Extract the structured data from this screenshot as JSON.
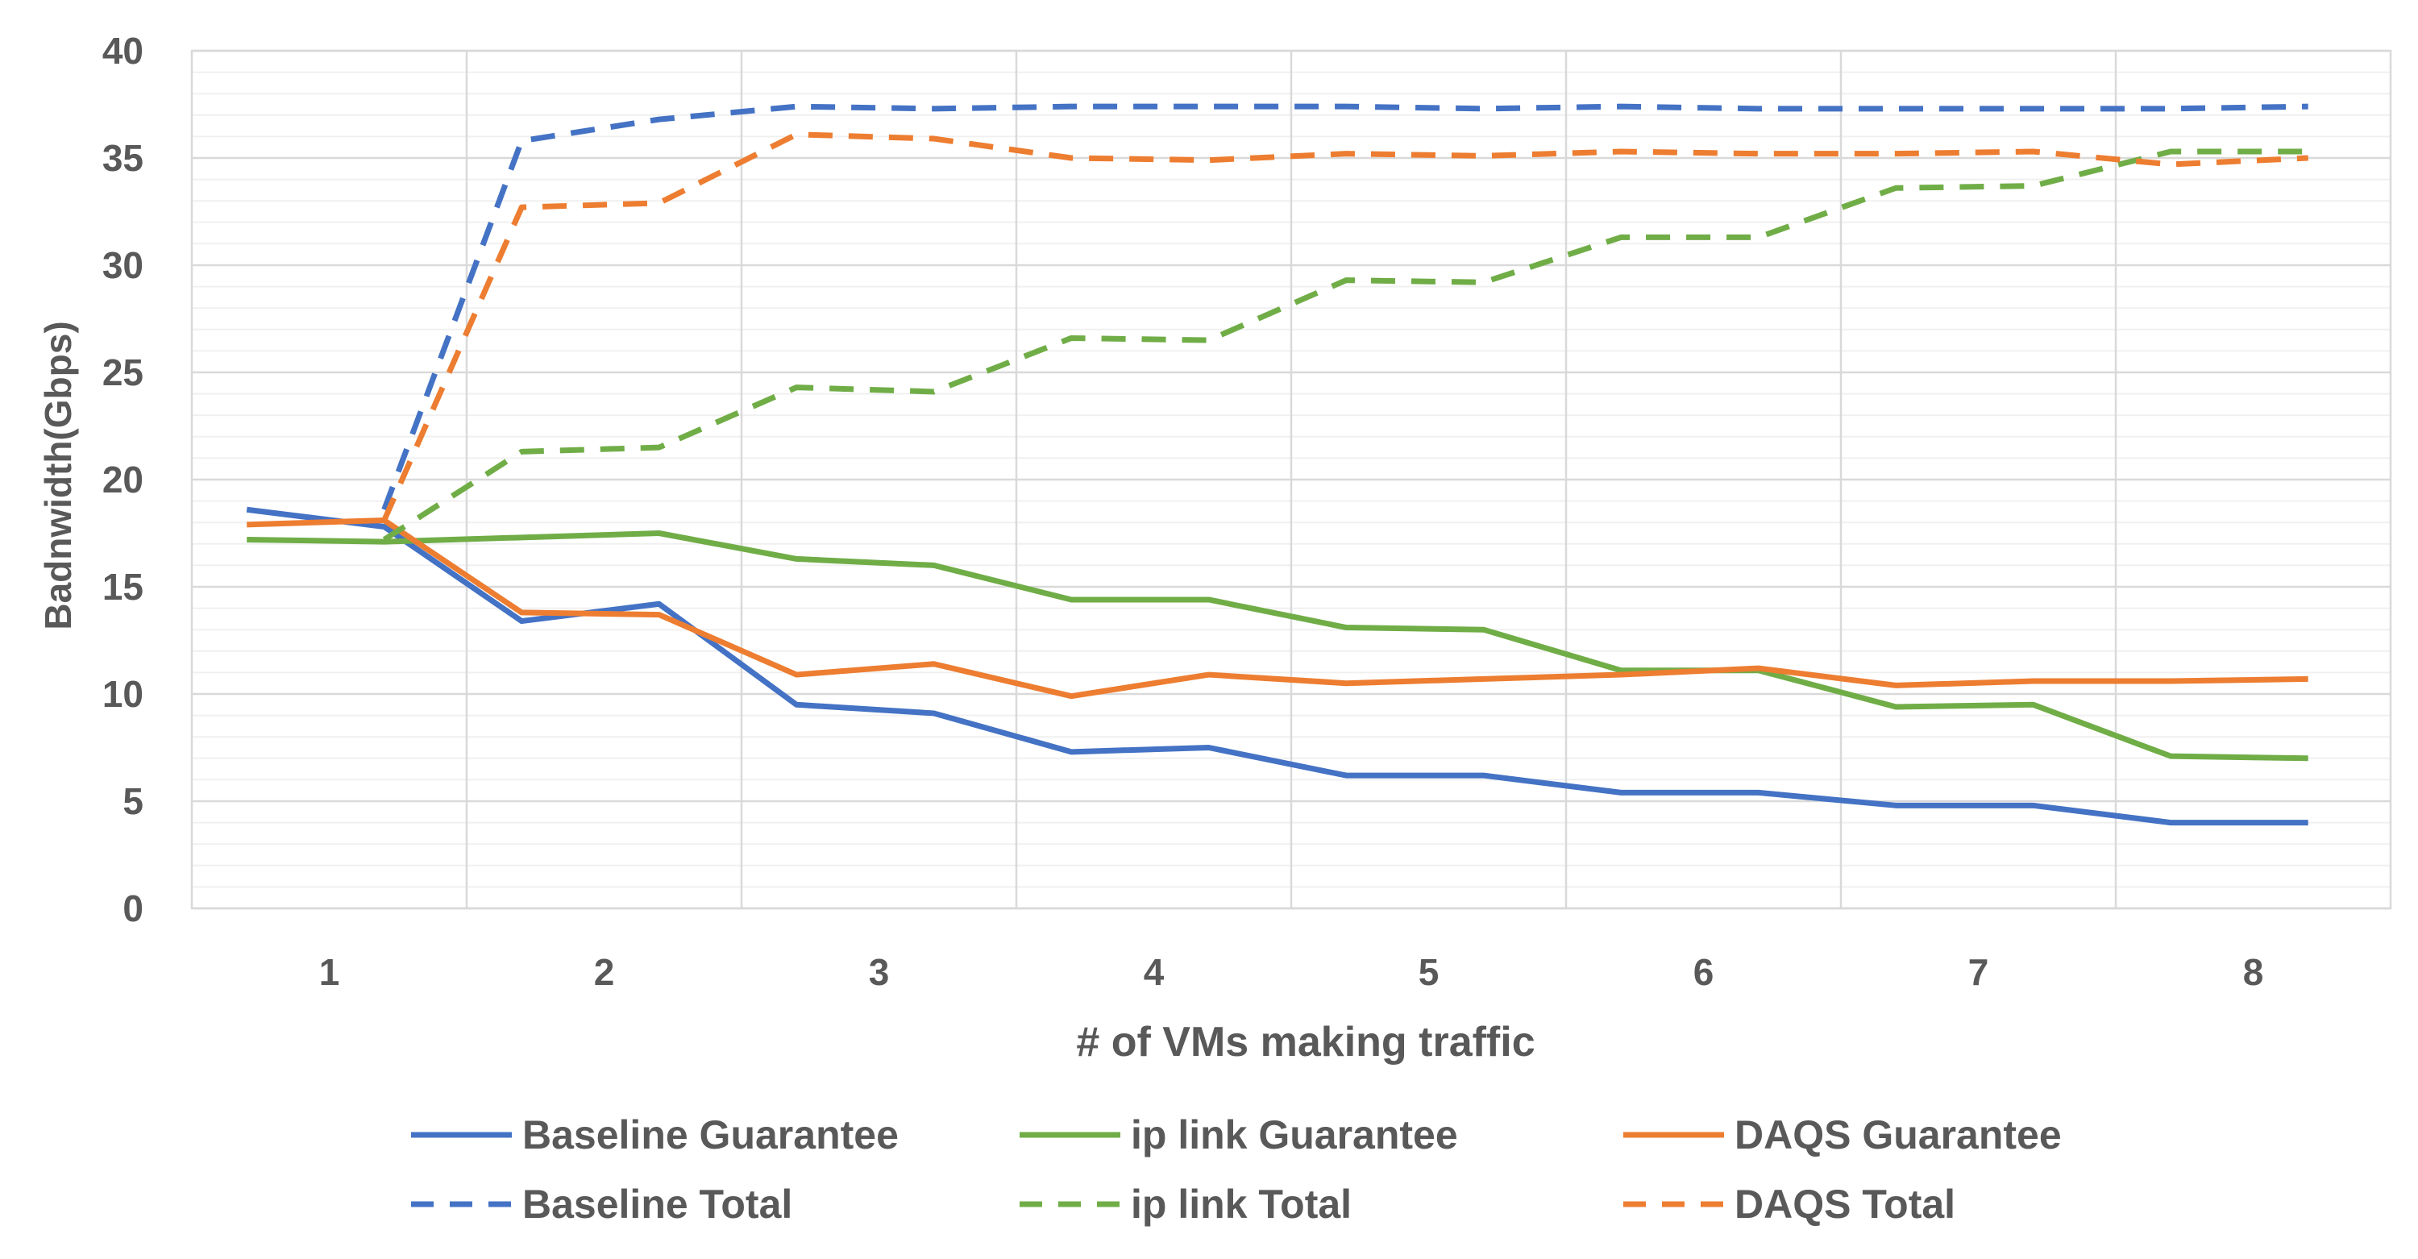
{
  "chart_data": {
    "type": "line",
    "title": "",
    "xlabel": "# of VMs making traffic",
    "ylabel": "Badnwidth(Gbps)",
    "categories": [
      "1",
      "2",
      "3",
      "4",
      "5",
      "6",
      "7",
      "8"
    ],
    "x": [
      0.2,
      0.7,
      1.2,
      1.7,
      2.2,
      2.7,
      3.2,
      3.7,
      4.2,
      4.7,
      5.2,
      5.7,
      6.2,
      6.7,
      7.2,
      7.7
    ],
    "ylim": [
      0,
      40
    ],
    "yticks": [
      0,
      5,
      10,
      15,
      20,
      25,
      30,
      35,
      40
    ],
    "grid": true,
    "legend_position": "bottom",
    "series": [
      {
        "name": "Baseline Guarantee",
        "color": "#4472C4",
        "dash": "solid",
        "values": [
          18.6,
          17.8,
          13.4,
          14.2,
          9.5,
          9.1,
          7.3,
          7.5,
          6.2,
          6.2,
          5.4,
          5.4,
          4.8,
          4.8,
          4.0,
          4.0
        ]
      },
      {
        "name": "ip link Guarantee",
        "color": "#70AD47",
        "dash": "solid",
        "values": [
          17.2,
          17.1,
          17.3,
          17.5,
          16.3,
          16.0,
          14.4,
          14.4,
          13.1,
          13.0,
          11.1,
          11.1,
          9.4,
          9.5,
          7.1,
          7.0
        ]
      },
      {
        "name": "DAQS Guarantee",
        "color": "#ED7D31",
        "dash": "solid",
        "values": [
          17.9,
          18.1,
          13.8,
          13.7,
          10.9,
          11.4,
          9.9,
          10.9,
          10.5,
          10.7,
          10.9,
          11.2,
          10.4,
          10.6,
          10.6,
          10.7
        ]
      },
      {
        "name": "Baseline Total",
        "color": "#4472C4",
        "dash": "dashed",
        "values": [
          null,
          18.6,
          35.8,
          36.8,
          37.4,
          37.3,
          37.4,
          37.4,
          37.4,
          37.3,
          37.4,
          37.3,
          37.3,
          37.3,
          37.3,
          37.4
        ]
      },
      {
        "name": "ip link Total",
        "color": "#70AD47",
        "dash": "dashed",
        "values": [
          null,
          17.2,
          21.3,
          21.5,
          24.3,
          24.1,
          26.6,
          26.5,
          29.3,
          29.2,
          31.3,
          31.3,
          33.6,
          33.7,
          35.3,
          35.3
        ]
      },
      {
        "name": "DAQS Total",
        "color": "#ED7D31",
        "dash": "dashed",
        "values": [
          null,
          18.1,
          32.7,
          32.9,
          36.1,
          35.9,
          35.0,
          34.9,
          35.2,
          35.1,
          35.3,
          35.2,
          35.2,
          35.3,
          34.7,
          35.0
        ]
      }
    ],
    "legend": [
      [
        "Baseline Guarantee",
        "ip link Guarantee",
        "DAQS Guarantee"
      ],
      [
        "Baseline Total",
        "ip link Total",
        "DAQS Total"
      ]
    ]
  }
}
